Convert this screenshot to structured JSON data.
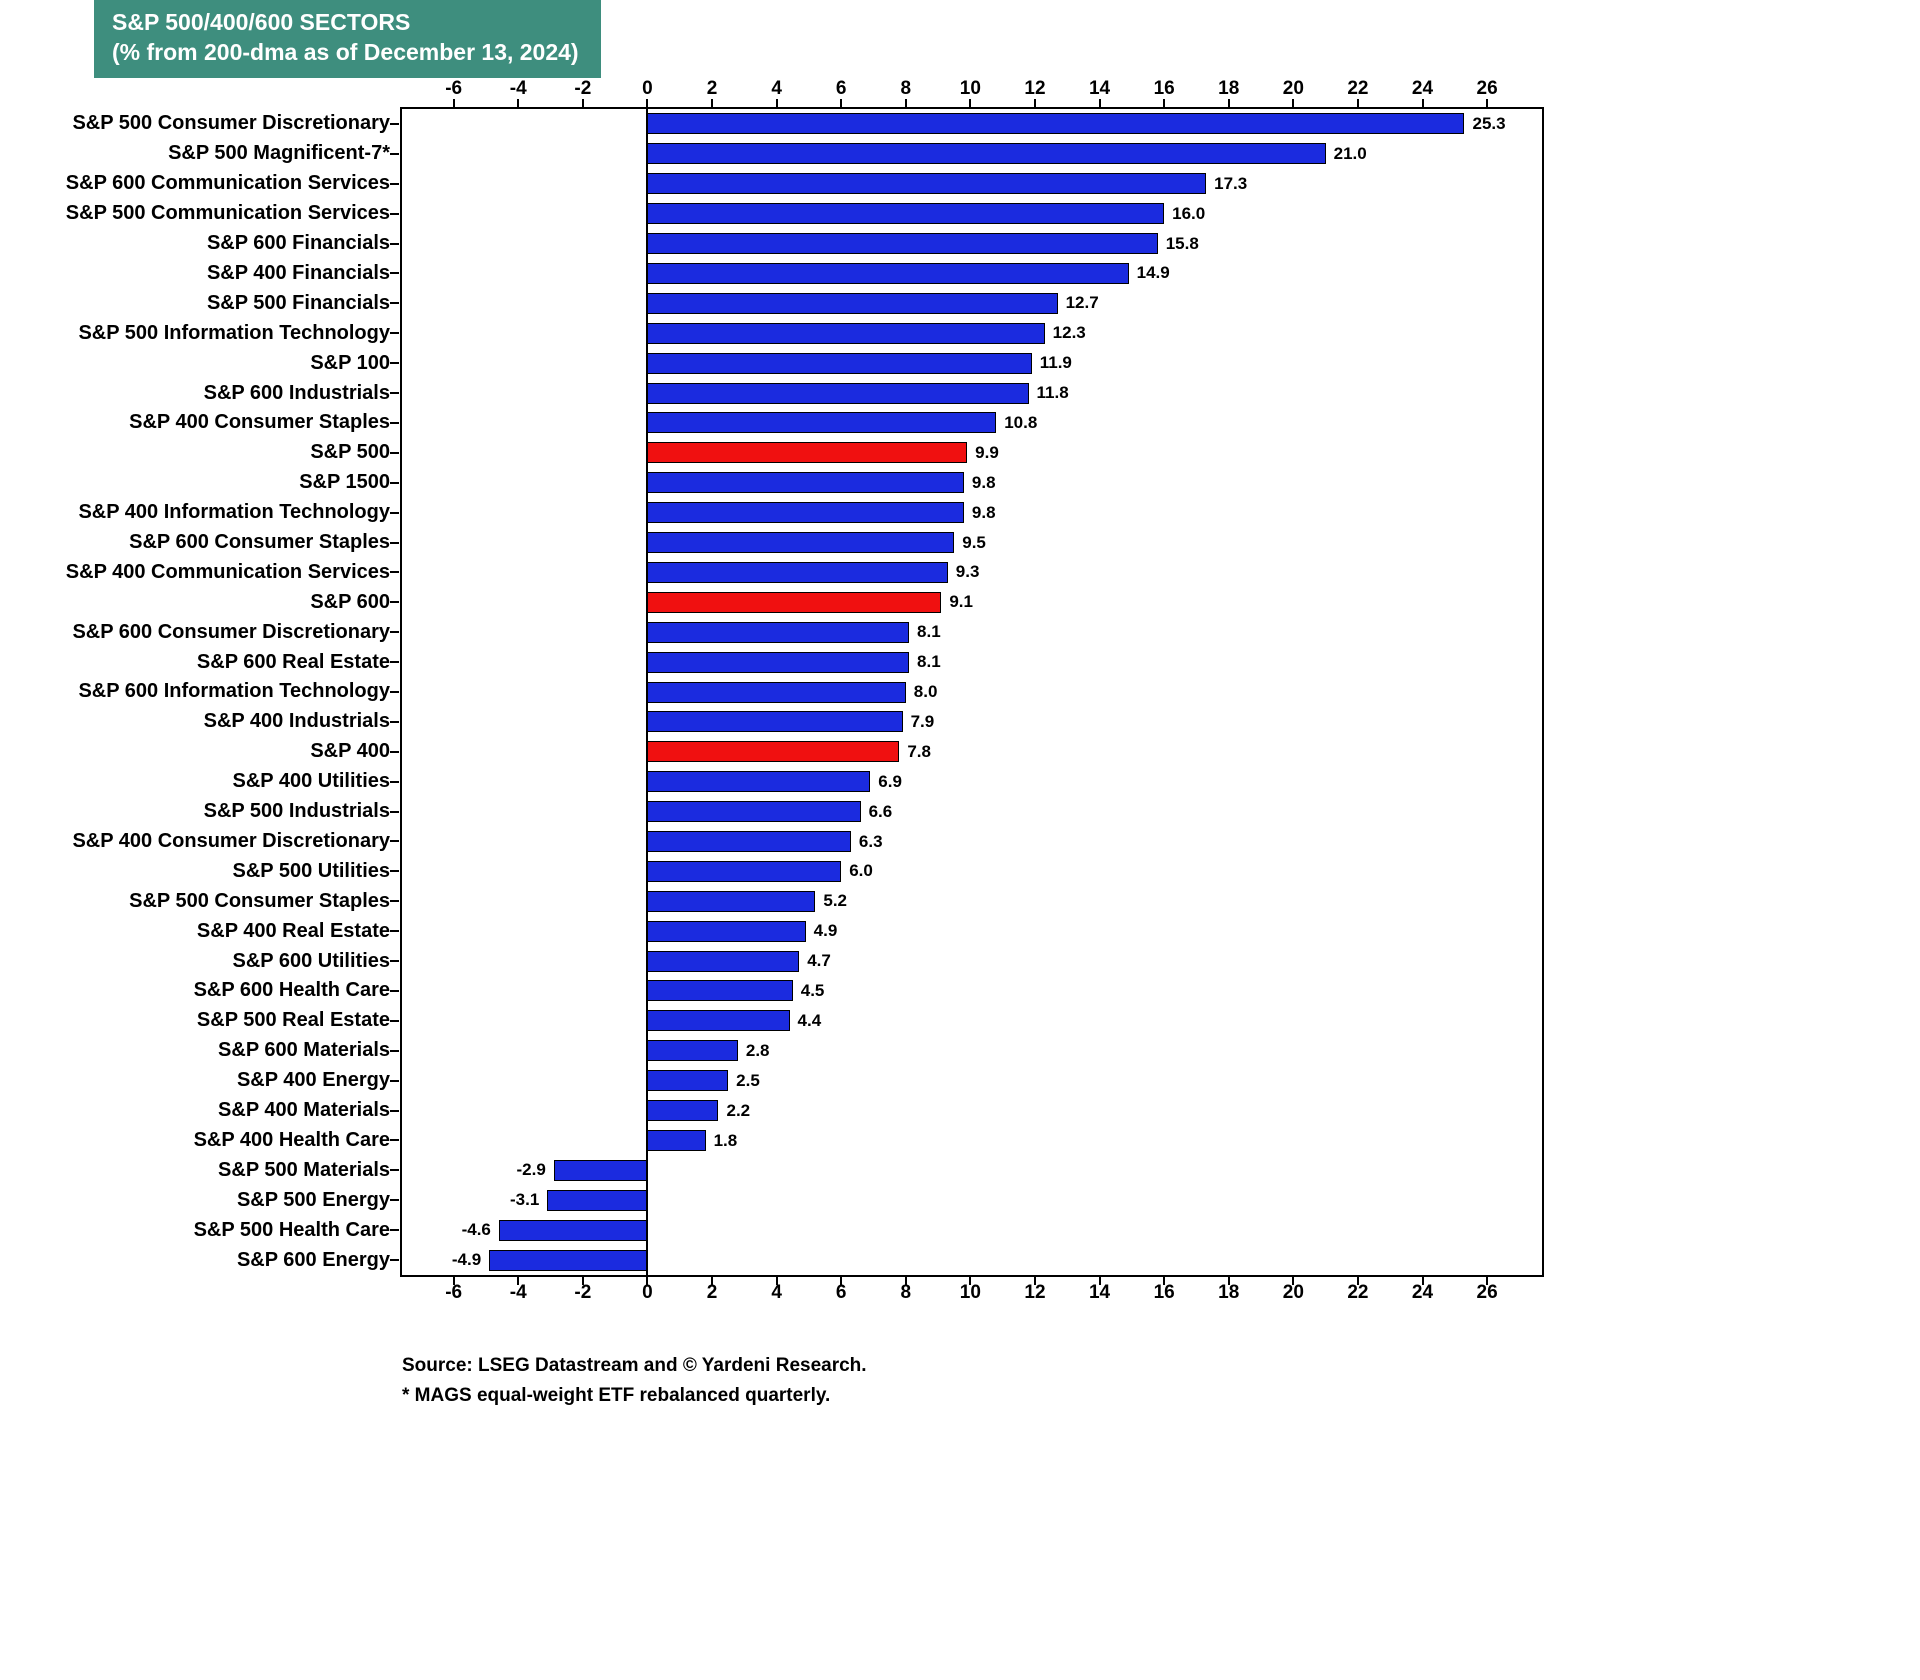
{
  "title": {
    "line1": "S&P 500/400/600 SECTORS",
    "line2": "(% from 200-dma as of December 13, 2024)"
  },
  "footer": {
    "source": "Source: LSEG Datastream and © Yardeni Research.",
    "note": "* MAGS equal-weight ETF rebalanced quarterly."
  },
  "colors": {
    "bar_blue": "#1B2BDF",
    "bar_red": "#F01010",
    "title_bg": "#3E8E7E",
    "title_text": "#FFFFFF",
    "axis": "#000000"
  },
  "chart_data": {
    "type": "bar",
    "orientation": "horizontal",
    "title": "S&P 500/400/600 SECTORS (% from 200-dma as of December 13, 2024)",
    "xlabel": "",
    "ylabel": "",
    "xlim": [
      -7.6,
      27.7
    ],
    "ticks": [
      -6,
      -4,
      -2,
      0,
      2,
      4,
      6,
      8,
      10,
      12,
      14,
      16,
      18,
      20,
      22,
      24,
      26
    ],
    "grid": false,
    "legend": "none",
    "categories": [
      "S&P 500 Consumer Discretionary",
      "S&P 500 Magnificent-7*",
      "S&P 600 Communication Services",
      "S&P 500 Communication Services",
      "S&P 600 Financials",
      "S&P 400 Financials",
      "S&P 500 Financials",
      "S&P 500 Information Technology",
      "S&P 100",
      "S&P 600 Industrials",
      "S&P 400 Consumer Staples",
      "S&P 500",
      "S&P 1500",
      "S&P 400 Information Technology",
      "S&P 600 Consumer Staples",
      "S&P 400 Communication Services",
      "S&P 600",
      "S&P 600 Consumer Discretionary",
      "S&P 600 Real Estate",
      "S&P 600 Information Technology",
      "S&P 400 Industrials",
      "S&P 400",
      "S&P 400 Utilities",
      "S&P 500 Industrials",
      "S&P 400 Consumer Discretionary",
      "S&P 500 Utilities",
      "S&P 500 Consumer Staples",
      "S&P 400 Real Estate",
      "S&P 600 Utilities",
      "S&P 600 Health Care",
      "S&P 500 Real Estate",
      "S&P 600 Materials",
      "S&P 400 Energy",
      "S&P 400 Materials",
      "S&P 400 Health Care",
      "S&P 500 Materials",
      "S&P 500 Energy",
      "S&P 500 Health Care",
      "S&P 600 Energy"
    ],
    "values": [
      25.3,
      21.0,
      17.3,
      16.0,
      15.8,
      14.9,
      12.7,
      12.3,
      11.9,
      11.8,
      10.8,
      9.9,
      9.8,
      9.8,
      9.5,
      9.3,
      9.1,
      8.1,
      8.1,
      8.0,
      7.9,
      7.8,
      6.9,
      6.6,
      6.3,
      6.0,
      5.2,
      4.9,
      4.7,
      4.5,
      4.4,
      2.8,
      2.5,
      2.2,
      1.8,
      -2.9,
      -3.1,
      -4.6,
      -4.9
    ],
    "highlight_indices": [
      11,
      16,
      21
    ]
  }
}
